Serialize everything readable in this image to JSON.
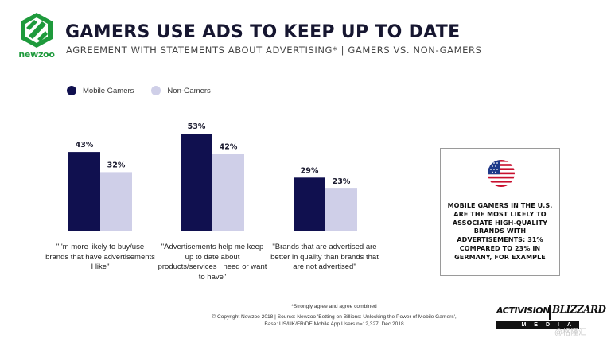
{
  "brand": {
    "name": "newzoo",
    "brand_color": "#1e9a3c"
  },
  "header": {
    "title": "GAMERS USE ADS TO KEEP UP TO DATE",
    "subtitle": "AGREEMENT WITH STATEMENTS ABOUT ADVERTISING* | GAMERS VS. NON-GAMERS"
  },
  "chart_data": {
    "type": "bar",
    "categories": [
      "\"I'm more likely to buy/use brands that have advertisements I like\"",
      "\"Advertisements help me keep up to date about products/services I need or want to have\"",
      "\"Brands that are advertised are better in quality than brands that are not advertised\""
    ],
    "series": [
      {
        "name": "Mobile Gamers",
        "color": "#10104f",
        "values": [
          43,
          53,
          29
        ],
        "labels": [
          "43%",
          "53%",
          "29%"
        ]
      },
      {
        "name": "Non-Gamers",
        "color": "#cfcfe8",
        "values": [
          32,
          42,
          23
        ],
        "labels": [
          "32%",
          "42%",
          "23%"
        ]
      }
    ],
    "unit": "%",
    "ylim": [
      0,
      60
    ],
    "title": "AGREEMENT WITH STATEMENTS ABOUT ADVERTISING* | GAMERS VS. NON-GAMERS",
    "legend": "top-left",
    "grid": false
  },
  "captions": [
    "\"I'm more likely to buy/use brands that have advertisements I like\"",
    "\"Advertisements help me keep up to date about products/services I need or want to have\"",
    "\"Brands that are advertised are better in quality than brands that are not advertised\""
  ],
  "callout": {
    "text": "MOBILE GAMERS IN THE U.S. ARE THE MOST LIKELY TO ASSOCIATE HIGH-QUALITY BRANDS WITH ADVERTISEMENTS: 31% COMPARED TO 23% IN GERMANY, FOR EXAMPLE",
    "icon": "us-flag-icon"
  },
  "footer": {
    "note": "*Strongly agree and agree combined",
    "copyright": "© Copyright Newzoo 2018 | Source: Newzoo 'Betting on Billions: Unlocking the Power of Mobile Gamers',",
    "base": "Base: US/UK/FR/DE Mobile App Users n=12,327, Dec 2018"
  },
  "partner": {
    "activision": "ACTIVISION",
    "blizzard": "BLIZZARD",
    "media": "MEDIA"
  },
  "watermark": "@格隆汇"
}
